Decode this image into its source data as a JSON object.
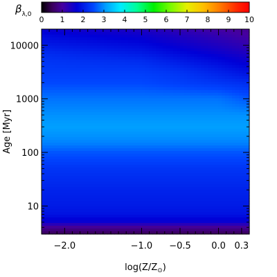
{
  "chart_data": {
    "type": "heatmap",
    "title": "",
    "colorbar": {
      "label": "β",
      "label_subscript": "λ,0",
      "range": [
        0,
        10
      ],
      "ticks": [
        "0",
        "1",
        "2",
        "3",
        "4",
        "5",
        "6",
        "7",
        "8",
        "9",
        "10"
      ],
      "colormap": "rainbow",
      "position": "top"
    },
    "x": {
      "label_main": "log(Z/Z",
      "label_sub": "⊙",
      "label_close": ")",
      "scale": "linear",
      "range": [
        -2.3,
        0.4
      ],
      "ticks": [
        {
          "value": -2.0,
          "label": "−2.0"
        },
        {
          "value": -1.0,
          "label": "−1.0"
        },
        {
          "value": -0.5,
          "label": "−0.5"
        },
        {
          "value": 0.0,
          "label": "0.0"
        },
        {
          "value": 0.3,
          "label": "0.3"
        }
      ]
    },
    "y": {
      "label_main": "Age",
      "label_unit": "[Myr]",
      "scale": "log",
      "range": [
        3,
        20000
      ],
      "ticks": [
        {
          "value": 10,
          "label": "10"
        },
        {
          "value": 100,
          "label": "100"
        },
        {
          "value": 1000,
          "label": "1000"
        },
        {
          "value": 10000,
          "label": "10000"
        }
      ]
    },
    "z_description_grid": {
      "age_myr": [
        3,
        4,
        5,
        7,
        10,
        20,
        50,
        100,
        150,
        200,
        300,
        500,
        700,
        1000,
        2000,
        3000,
        5000,
        7000,
        10000,
        15000,
        20000
      ],
      "logZ": [
        -2.3,
        -1.0,
        -0.5,
        0.0,
        0.4
      ],
      "values": [
        [
          0.5,
          0.5,
          0.5,
          0.5,
          0.5
        ],
        [
          0.9,
          0.9,
          0.9,
          0.9,
          0.9
        ],
        [
          1.6,
          1.6,
          1.6,
          1.6,
          1.6
        ],
        [
          1.9,
          1.9,
          1.9,
          1.9,
          1.9
        ],
        [
          2.0,
          2.0,
          2.0,
          2.0,
          2.0
        ],
        [
          2.1,
          2.1,
          2.1,
          2.1,
          2.1
        ],
        [
          2.3,
          2.3,
          2.3,
          2.3,
          2.3
        ],
        [
          2.6,
          2.6,
          2.6,
          2.6,
          2.6
        ],
        [
          2.9,
          2.9,
          2.9,
          2.9,
          2.9
        ],
        [
          3.0,
          3.0,
          3.0,
          3.0,
          3.0
        ],
        [
          3.1,
          3.1,
          3.1,
          3.1,
          3.1
        ],
        [
          3.0,
          3.0,
          3.0,
          3.0,
          3.0
        ],
        [
          2.9,
          2.9,
          2.9,
          2.9,
          2.8
        ],
        [
          2.8,
          2.8,
          2.8,
          2.8,
          2.6
        ],
        [
          2.5,
          2.5,
          2.4,
          2.3,
          2.2
        ],
        [
          2.4,
          2.4,
          2.3,
          2.1,
          1.9
        ],
        [
          2.3,
          2.2,
          2.0,
          1.8,
          1.6
        ],
        [
          2.2,
          2.0,
          1.8,
          1.6,
          1.4
        ],
        [
          2.0,
          1.8,
          1.6,
          1.4,
          1.2
        ],
        [
          1.8,
          1.6,
          1.4,
          1.2,
          1.0
        ],
        [
          1.6,
          1.4,
          1.2,
          1.0,
          0.9
        ]
      ]
    }
  }
}
